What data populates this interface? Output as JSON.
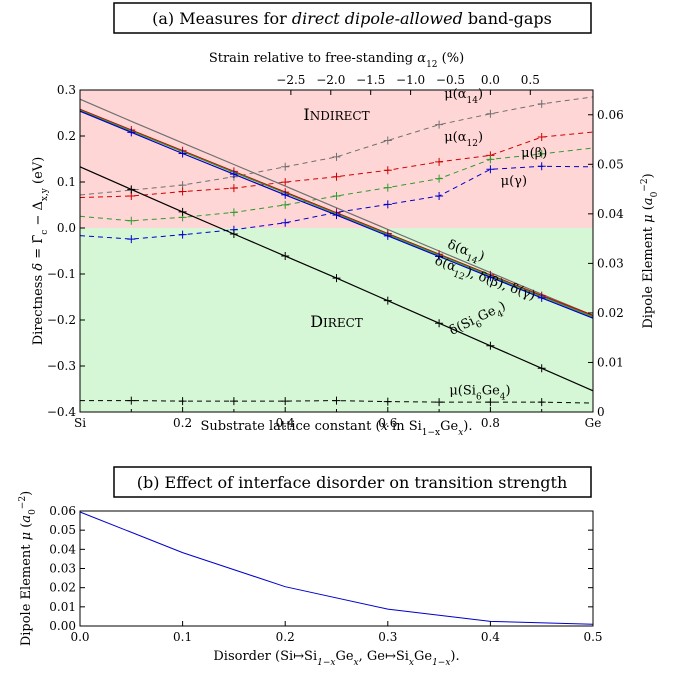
{
  "chart_data": [
    {
      "type": "line",
      "title": "(a) Measures for direct dipole-allowed band-gaps",
      "title_plain": "(a) Measures for ",
      "title_italic": "direct dipole-allowed",
      "title_tail": " band-gaps",
      "xlabel": "Substrate lattice constant (x in Si1−xGex).",
      "xlabel_parts": [
        "Substrate lattice constant (",
        "x",
        " in Si",
        "1−x",
        "Ge",
        "x",
        ")."
      ],
      "ylabel_left": "Directness δ = Γ̄c − Δx,y (eV)",
      "ylabel_right": "Dipole Element μ (a0−2)",
      "top_axis_label": "Strain relative to free-standing α12 (%)",
      "x": [
        0,
        0.1,
        0.2,
        0.3,
        0.4,
        0.5,
        0.6,
        0.7,
        0.8,
        0.9,
        1.0
      ],
      "xlim": [
        0,
        1
      ],
      "ylim_left": [
        -0.4,
        0.3
      ],
      "ylim_right": [
        0,
        0.065
      ],
      "x_ticks": [
        "Si",
        "0.2",
        "0.4",
        "0.6",
        "0.8",
        "Ge"
      ],
      "y_ticks_left": [
        "−0.4",
        "−0.3",
        "−0.2",
        "−0.1",
        "0.0",
        "0.1",
        "0.2",
        "0.3"
      ],
      "y_ticks_right": [
        "0",
        "0.01",
        "0.02",
        "0.03",
        "0.04",
        "0.05",
        "0.06"
      ],
      "top_ticks": [
        "−2.5",
        "−2.0",
        "−1.5",
        "−1.0",
        "−0.5",
        "0.0",
        "0.5"
      ],
      "top_tick_values": [
        -2.5,
        -2.0,
        -1.5,
        -1.0,
        -0.5,
        0.0,
        0.5
      ],
      "top_zero_x": 0.8,
      "top_per_percent": 0.3556,
      "region_labels": {
        "indirect": "Indirect",
        "direct": "Direct"
      },
      "region_colors": {
        "indirect": "#ffd6d6",
        "direct": "#d6f7d6"
      },
      "directness_series": [
        {
          "name": "δ(α14)",
          "label_parts": [
            "δ(α",
            "14",
            ")"
          ],
          "color": "#707070",
          "axis": "left",
          "style": "solid",
          "markers": false,
          "values": [
            0.28,
            0.232,
            0.185,
            0.138,
            0.091,
            0.044,
            -0.003,
            -0.05,
            -0.097,
            -0.144,
            -0.19
          ]
        },
        {
          "name": "δ(α12)",
          "color": "#d00000",
          "axis": "left",
          "style": "solid",
          "markers": true,
          "values": [
            0.258,
            0.213,
            0.168,
            0.123,
            0.078,
            0.033,
            -0.012,
            -0.057,
            -0.102,
            -0.147,
            -0.19
          ]
        },
        {
          "name": "δ(β)",
          "color": "#2f9a2f",
          "axis": "left",
          "style": "solid",
          "markers": false,
          "values": [
            0.256,
            0.211,
            0.166,
            0.121,
            0.076,
            0.031,
            -0.014,
            -0.059,
            -0.104,
            -0.149,
            -0.193
          ]
        },
        {
          "name": "δ(γ)",
          "color": "#0000cc",
          "axis": "left",
          "style": "solid",
          "markers": true,
          "values": [
            0.254,
            0.208,
            0.162,
            0.117,
            0.072,
            0.028,
            -0.017,
            -0.062,
            -0.107,
            -0.152,
            -0.196
          ]
        },
        {
          "name": "δ(Si6Ge4)",
          "label_parts": [
            "δ(Si",
            "6",
            "Ge",
            "4",
            ")"
          ],
          "color": "#000000",
          "axis": "left",
          "style": "solid",
          "markers": true,
          "values": [
            0.133,
            0.084,
            0.035,
            -0.013,
            -0.061,
            -0.109,
            -0.158,
            -0.207,
            -0.256,
            -0.305,
            -0.354
          ]
        }
      ],
      "combined_label_parts": [
        "δ(α",
        "12",
        "), δ(β), δ(γ)"
      ],
      "dipole_series": [
        {
          "name": "μ(α14)",
          "label_parts": [
            "μ(α",
            "14",
            ")"
          ],
          "color": "#707070",
          "axis": "right",
          "style": "dashed",
          "values": [
            0.0438,
            0.0448,
            0.0458,
            0.0475,
            0.0495,
            0.0515,
            0.0548,
            0.058,
            0.0602,
            0.0622,
            0.0636
          ]
        },
        {
          "name": "μ(α12)",
          "label_parts": [
            "μ(α",
            "12",
            ")"
          ],
          "color": "#d00000",
          "axis": "right",
          "style": "dashed",
          "values": [
            0.0433,
            0.0436,
            0.0445,
            0.0452,
            0.0464,
            0.0475,
            0.0488,
            0.0505,
            0.0518,
            0.0555,
            0.0565
          ]
        },
        {
          "name": "μ(β)",
          "label_parts": [
            "μ(β)"
          ],
          "color": "#2f9a2f",
          "axis": "right",
          "style": "dashed",
          "values": [
            0.0395,
            0.0386,
            0.0393,
            0.0403,
            0.0418,
            0.0436,
            0.0453,
            0.0471,
            0.051,
            0.0521,
            0.0533
          ]
        },
        {
          "name": "μ(γ)",
          "label_parts": [
            "μ(γ)"
          ],
          "color": "#0000cc",
          "axis": "right",
          "style": "dashed",
          "values": [
            0.0356,
            0.0349,
            0.0358,
            0.0368,
            0.0382,
            0.0403,
            0.0419,
            0.0436,
            0.049,
            0.0496,
            0.0495
          ]
        },
        {
          "name": "μ(Si6Ge4)",
          "label_parts": [
            "μ(Si",
            "6",
            "Ge",
            "4",
            ")"
          ],
          "color": "#000000",
          "axis": "right",
          "style": "dashed",
          "values": [
            0.0023,
            0.0023,
            0.0022,
            0.0022,
            0.0022,
            0.0023,
            0.0021,
            0.002,
            0.002,
            0.002,
            0.0018
          ]
        }
      ]
    },
    {
      "type": "line",
      "title": "(b) Effect of interface disorder on transition strength",
      "xlabel": "Disorder (Si↦Si1−xGex, Ge↦SixGe1−x).",
      "xlabel_parts": [
        "Disorder (Si↦Si",
        "1−x",
        "Ge",
        "x",
        ", Ge↦Si",
        "x",
        "Ge",
        "1−x",
        ")."
      ],
      "ylabel": "Dipole Element μ (a0−2)",
      "x": [
        0.0,
        0.1,
        0.2,
        0.3,
        0.4,
        0.5
      ],
      "xlim": [
        0,
        0.5
      ],
      "ylim": [
        0,
        0.06
      ],
      "x_ticks": [
        "0.0",
        "0.1",
        "0.2",
        "0.3",
        "0.4",
        "0.5"
      ],
      "y_ticks": [
        "0.00",
        "0.01",
        "0.02",
        "0.03",
        "0.04",
        "0.05",
        "0.06"
      ],
      "series": [
        {
          "name": "",
          "color": "#0000cc",
          "values": [
            0.0595,
            0.0383,
            0.0205,
            0.0088,
            0.0024,
            0.0009
          ]
        }
      ]
    }
  ]
}
